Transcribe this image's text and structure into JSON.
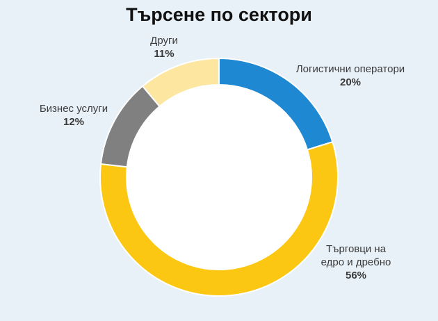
{
  "chart_data": {
    "type": "pie",
    "subtype": "donut",
    "title": "Търсене по сектори",
    "slices": [
      {
        "label": "Логистични оператори",
        "value": 20,
        "value_label": "20%",
        "color": "#1e88d2"
      },
      {
        "label": "Търговци на едро и дребно",
        "value": 56,
        "value_label": "56%",
        "color": "#fcc713"
      },
      {
        "label": "Бизнес услуги",
        "value": 12,
        "value_label": "12%",
        "color": "#808080"
      },
      {
        "label": "Други",
        "value": 11,
        "value_label": "11%",
        "color": "#fde7a0"
      }
    ],
    "background": "#e8f1f8"
  }
}
